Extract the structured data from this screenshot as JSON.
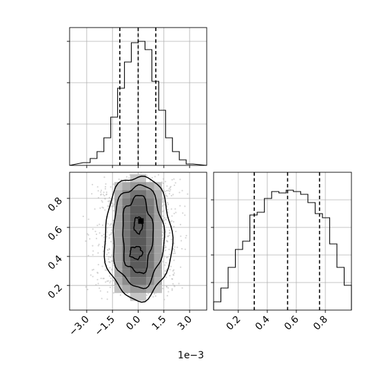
{
  "chart_data": {
    "type": "corner",
    "offset_label": "1e−3",
    "panels": [
      {
        "name": "param1-marginal",
        "type": "histogram",
        "xlim": [
          -4.0,
          4.0
        ],
        "ylim": [
          0,
          1.0
        ],
        "bin_edges": [
          -3.2,
          -2.8,
          -2.4,
          -2.0,
          -1.6,
          -1.2,
          -0.8,
          -0.4,
          0.0,
          0.4,
          0.8,
          1.2,
          1.6,
          2.0,
          2.4,
          2.8,
          3.2
        ],
        "counts": [
          0.02,
          0.05,
          0.1,
          0.2,
          0.35,
          0.56,
          0.75,
          0.89,
          0.9,
          0.84,
          0.61,
          0.4,
          0.2,
          0.1,
          0.04,
          0.01
        ],
        "quantiles": [
          -1.07,
          0.0,
          1.03
        ],
        "yticks": [
          0.3,
          0.6,
          0.9
        ],
        "grid": true
      },
      {
        "name": "param2-marginal",
        "type": "histogram",
        "xlim": [
          0.03,
          0.98
        ],
        "ylim": [
          0,
          1.0
        ],
        "bin_edges": [
          0.03,
          0.08,
          0.13,
          0.18,
          0.23,
          0.28,
          0.33,
          0.38,
          0.43,
          0.48,
          0.53,
          0.58,
          0.63,
          0.68,
          0.73,
          0.78,
          0.83,
          0.88,
          0.93,
          0.98
        ],
        "counts": [
          0.06,
          0.16,
          0.31,
          0.44,
          0.5,
          0.69,
          0.71,
          0.81,
          0.86,
          0.85,
          0.87,
          0.86,
          0.84,
          0.78,
          0.7,
          0.67,
          0.48,
          0.31,
          0.18
        ],
        "quantiles": [
          0.31,
          0.54,
          0.76
        ],
        "yticks": [
          0.2,
          0.4,
          0.6,
          0.8
        ],
        "xticks": [
          0.2,
          0.4,
          0.6,
          0.8
        ],
        "xtick_labels": [
          "0.2",
          "0.4",
          "0.6",
          "0.8"
        ],
        "grid": true
      },
      {
        "name": "joint-param1-param2",
        "type": "2d-histogram-contour",
        "xlim": [
          -4.0,
          4.0
        ],
        "ylim": [
          0.03,
          0.98
        ],
        "xticks": [
          -3.0,
          -1.5,
          0.0,
          1.5,
          3.0
        ],
        "xtick_labels": [
          "−3.0",
          "−1.5",
          "0.0",
          "1.5",
          "3.0"
        ],
        "yticks": [
          0.2,
          0.4,
          0.6,
          0.8
        ],
        "ytick_labels": [
          "0.2",
          "0.4",
          "0.6",
          "0.8"
        ],
        "grid": true,
        "contour_levels": [
          "outer",
          "middle",
          "inner",
          "peak"
        ]
      }
    ]
  }
}
